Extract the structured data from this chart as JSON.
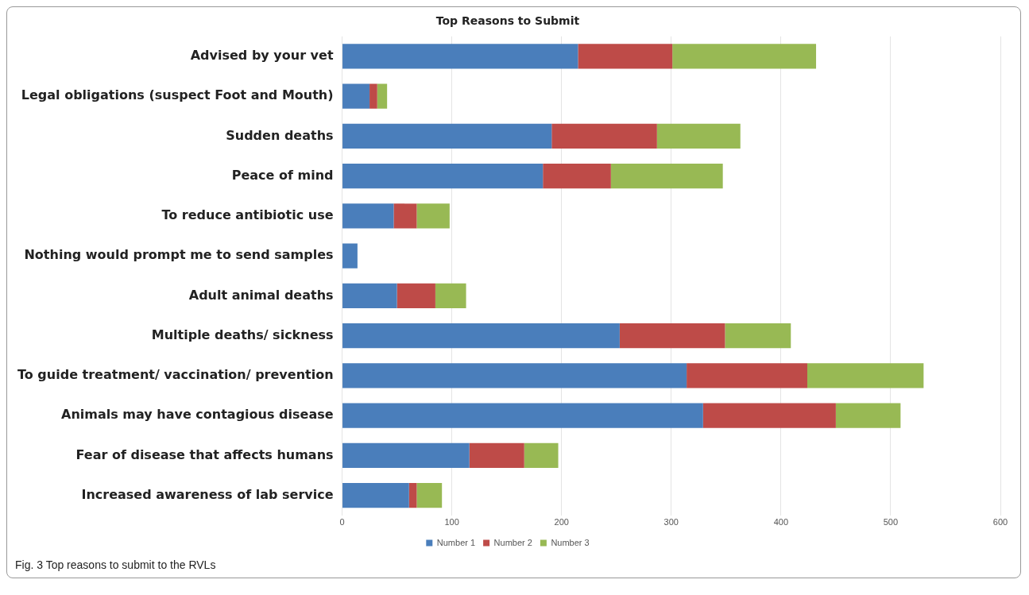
{
  "chart_data": {
    "type": "bar",
    "orientation": "horizontal",
    "stacked": true,
    "title": "Top Reasons to Submit",
    "categories": [
      "Advised by your vet",
      "Legal obligations (suspect Foot and Mouth)",
      "Sudden deaths",
      "Peace of mind",
      "To reduce antibiotic use",
      "Nothing would prompt me to send samples",
      "Adult animal deaths",
      "Multiple deaths/ sickness",
      "To guide treatment/ vaccination/ prevention",
      "Animals may have contagious disease",
      "Fear of disease that affects humans",
      "Increased awareness of lab service"
    ],
    "series": [
      {
        "name": "Number 1",
        "color": "#4a7ebb",
        "values": [
          215,
          25,
          191,
          183,
          47,
          14,
          50,
          253,
          314,
          329,
          116,
          61
        ]
      },
      {
        "name": "Number 2",
        "color": "#be4b48",
        "values": [
          86,
          7,
          96,
          62,
          21,
          null,
          35,
          96,
          110,
          121,
          50,
          7
        ]
      },
      {
        "name": "Number 3",
        "color": "#98b954",
        "values": [
          131,
          9,
          76,
          102,
          30,
          null,
          28,
          60,
          106,
          59,
          31,
          23
        ]
      }
    ],
    "xlim": [
      0,
      600
    ],
    "xticks": [
      0,
      100,
      200,
      300,
      400,
      500,
      600
    ],
    "grid": "x",
    "legend": "bottom",
    "annotations": [
      "Fig. 3  Top reasons to submit to the RVLs"
    ]
  }
}
